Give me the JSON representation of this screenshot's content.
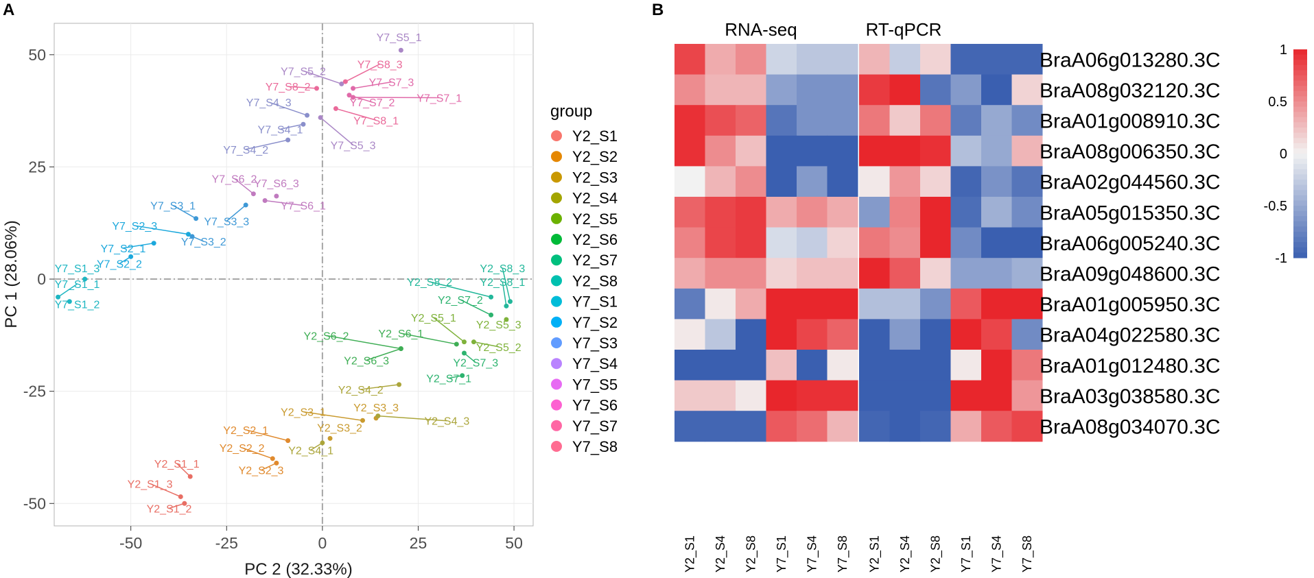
{
  "panels": {
    "a_label": "A",
    "b_label": "B"
  },
  "chart_data": [
    {
      "type": "scatter",
      "xlabel": "PC 2 (32.33%)",
      "ylabel": "PC 1 (28.06%)",
      "xlim": [
        -70,
        55
      ],
      "ylim": [
        -55,
        57
      ],
      "xticks": [
        -50,
        -25,
        0,
        25,
        50
      ],
      "yticks": [
        -50,
        -25,
        0,
        25,
        50
      ],
      "xtick_labels": [
        "-50",
        "-25",
        "0",
        "25",
        "50"
      ],
      "ytick_labels": [
        "-50",
        "-25",
        "0",
        "25",
        "50"
      ],
      "reference_lines": {
        "x": 0,
        "y": 0,
        "style": "dashed"
      },
      "legend": {
        "title": "group",
        "position": "right",
        "entries": [
          {
            "name": "Y2_S1",
            "color": "#F8766D"
          },
          {
            "name": "Y2_S2",
            "color": "#E58700"
          },
          {
            "name": "Y2_S3",
            "color": "#C99800"
          },
          {
            "name": "Y2_S4",
            "color": "#A3A500"
          },
          {
            "name": "Y2_S5",
            "color": "#6BB100"
          },
          {
            "name": "Y2_S6",
            "color": "#00BA38"
          },
          {
            "name": "Y2_S7",
            "color": "#00BF7D"
          },
          {
            "name": "Y2_S8",
            "color": "#00C0AF"
          },
          {
            "name": "Y7_S1",
            "color": "#00BCD8"
          },
          {
            "name": "Y7_S2",
            "color": "#00B0F6"
          },
          {
            "name": "Y7_S3",
            "color": "#619CFF"
          },
          {
            "name": "Y7_S4",
            "color": "#B983FF"
          },
          {
            "name": "Y7_S5",
            "color": "#E76BF3"
          },
          {
            "name": "Y7_S6",
            "color": "#FD61D1"
          },
          {
            "name": "Y7_S7",
            "color": "#FF67A4"
          },
          {
            "name": "Y7_S8",
            "color": "#FF6C91"
          }
        ]
      },
      "point_colors": {
        "Y2_S1": "#E86E64",
        "Y2_S2": "#E08A2E",
        "Y2_S3": "#C99A2E",
        "Y2_S4": "#ABA53A",
        "Y2_S5": "#7FB23B",
        "Y2_S6": "#3FAE55",
        "Y2_S7": "#2DB36F",
        "Y2_S8": "#22B79A",
        "Y7_S1": "#1EB6C2",
        "Y7_S2": "#1BA8DC",
        "Y7_S3": "#3E98D6",
        "Y7_S4": "#8A8FCB",
        "Y7_S5": "#AA87C6",
        "Y7_S6": "#C07ABF",
        "Y7_S7": "#E06AA9",
        "Y7_S8": "#EA6A9A"
      },
      "points": [
        {
          "label": "Y7_S5_1",
          "group": "Y7_S5",
          "x": 20.5,
          "y": 51,
          "lx": 20,
          "ly": 53
        },
        {
          "label": "Y7_S5_2",
          "group": "Y7_S5",
          "x": 5,
          "y": 43.5,
          "lx": -5,
          "ly": 45.5
        },
        {
          "label": "Y7_S8_3",
          "group": "Y7_S8",
          "x": 6,
          "y": 44,
          "lx": 15,
          "ly": 47
        },
        {
          "label": "Y7_S8_2",
          "group": "Y7_S8",
          "x": -1.5,
          "y": 42.5,
          "lx": -9,
          "ly": 42
        },
        {
          "label": "Y7_S7_3",
          "group": "Y7_S7",
          "x": 8,
          "y": 42.5,
          "lx": 18,
          "ly": 43
        },
        {
          "label": "Y7_S7_2",
          "group": "Y7_S7",
          "x": 7,
          "y": 41,
          "lx": 13,
          "ly": 38.5
        },
        {
          "label": "Y7_S7_1",
          "group": "Y7_S7",
          "x": 8,
          "y": 40.5,
          "lx": 30.5,
          "ly": 39.5
        },
        {
          "label": "Y7_S8_1",
          "group": "Y7_S8",
          "x": 3.5,
          "y": 38,
          "lx": 14,
          "ly": 34.5
        },
        {
          "label": "Y7_S4_3",
          "group": "Y7_S4",
          "x": -4,
          "y": 36.5,
          "lx": -14,
          "ly": 38.5
        },
        {
          "label": "Y7_S4_1",
          "group": "Y7_S4",
          "x": -5,
          "y": 34.5,
          "lx": -11,
          "ly": 32.5
        },
        {
          "label": "Y7_S4_2",
          "group": "Y7_S4",
          "x": -9,
          "y": 31,
          "lx": -20,
          "ly": 28
        },
        {
          "label": "Y7_S5_3",
          "group": "Y7_S5",
          "x": -0.5,
          "y": 36,
          "lx": 8,
          "ly": 29
        },
        {
          "label": "Y7_S6_2",
          "group": "Y7_S6",
          "x": -18,
          "y": 19,
          "lx": -23,
          "ly": 21.5
        },
        {
          "label": "Y7_S6_3",
          "group": "Y7_S6",
          "x": -12,
          "y": 18.5,
          "lx": -12,
          "ly": 20.5
        },
        {
          "label": "Y7_S6_1",
          "group": "Y7_S6",
          "x": -15,
          "y": 17.5,
          "lx": -5,
          "ly": 15.5
        },
        {
          "label": "Y7_S3_1",
          "group": "Y7_S3",
          "x": -33,
          "y": 13.5,
          "lx": -39,
          "ly": 15.5
        },
        {
          "label": "Y7_S3_3",
          "group": "Y7_S3",
          "x": -20,
          "y": 16.5,
          "lx": -25,
          "ly": 12
        },
        {
          "label": "Y7_S2_3",
          "group": "Y7_S2",
          "x": -35,
          "y": 10,
          "lx": -49,
          "ly": 11
        },
        {
          "label": "Y7_S3_2",
          "group": "Y7_S3",
          "x": -34,
          "y": 9.5,
          "lx": -31,
          "ly": 7.5
        },
        {
          "label": "Y7_S2_1",
          "group": "Y7_S2",
          "x": -44,
          "y": 8,
          "lx": -52,
          "ly": 6
        },
        {
          "label": "Y7_S2_2",
          "group": "Y7_S2",
          "x": -50,
          "y": 5,
          "lx": -53,
          "ly": 2.5
        },
        {
          "label": "Y7_S1_3",
          "group": "Y7_S1",
          "x": -62,
          "y": 0,
          "lx": -64,
          "ly": 1.5
        },
        {
          "label": "Y7_S1_1",
          "group": "Y7_S1",
          "x": -69,
          "y": -4,
          "lx": -64,
          "ly": -2
        },
        {
          "label": "Y7_S1_2",
          "group": "Y7_S1",
          "x": -66,
          "y": -5,
          "lx": -64,
          "ly": -6.5
        },
        {
          "label": "Y2_S8_3",
          "group": "Y2_S8",
          "x": 49,
          "y": -5,
          "lx": 47,
          "ly": 1.5
        },
        {
          "label": "Y2_S8_2",
          "group": "Y2_S8",
          "x": 44,
          "y": -4,
          "lx": 28,
          "ly": -1.5
        },
        {
          "label": "Y2_S8_1",
          "group": "Y2_S8",
          "x": 48,
          "y": -6,
          "lx": 47,
          "ly": -1.5
        },
        {
          "label": "Y2_S7_2",
          "group": "Y2_S7",
          "x": 44,
          "y": -8,
          "lx": 36,
          "ly": -5.5
        },
        {
          "label": "Y2_S5_1",
          "group": "Y2_S5",
          "x": 37,
          "y": -14,
          "lx": 29,
          "ly": -9.5
        },
        {
          "label": "Y2_S5_3",
          "group": "Y2_S5",
          "x": 48,
          "y": -9,
          "lx": 46,
          "ly": -11
        },
        {
          "label": "Y2_S6_2",
          "group": "Y2_S6",
          "x": 20.5,
          "y": -15.5,
          "lx": 1,
          "ly": -13.5
        },
        {
          "label": "Y2_S6_1",
          "group": "Y2_S6",
          "x": 35,
          "y": -14.5,
          "lx": 20.5,
          "ly": -13
        },
        {
          "label": "Y2_S5_2",
          "group": "Y2_S5",
          "x": 39.5,
          "y": -14,
          "lx": 46,
          "ly": -16
        },
        {
          "label": "Y2_S6_3",
          "group": "Y2_S6",
          "x": 20.5,
          "y": -15.5,
          "lx": 11.5,
          "ly": -19
        },
        {
          "label": "Y2_S7_3",
          "group": "Y2_S7",
          "x": 37,
          "y": -16.5,
          "lx": 40,
          "ly": -19.5
        },
        {
          "label": "Y2_S7_1",
          "group": "Y2_S7",
          "x": 36.5,
          "y": -21.5,
          "lx": 33,
          "ly": -23
        },
        {
          "label": "Y2_S4_2",
          "group": "Y2_S4",
          "x": 20,
          "y": -23.5,
          "lx": 10,
          "ly": -25.5
        },
        {
          "label": "Y2_S3_1",
          "group": "Y2_S3",
          "x": 10.5,
          "y": -31.5,
          "lx": -5,
          "ly": -30.5
        },
        {
          "label": "Y2_S3_3",
          "group": "Y2_S3",
          "x": 14,
          "y": -31,
          "lx": 14,
          "ly": -29.5
        },
        {
          "label": "Y2_S4_3",
          "group": "Y2_S4",
          "x": 14.5,
          "y": -30.5,
          "lx": 32.5,
          "ly": -32.5
        },
        {
          "label": "Y2_S2_1",
          "group": "Y2_S2",
          "x": -9,
          "y": -36,
          "lx": -20,
          "ly": -34.5
        },
        {
          "label": "Y2_S3_2",
          "group": "Y2_S3",
          "x": 2,
          "y": -35.5,
          "lx": 4.5,
          "ly": -34
        },
        {
          "label": "Y2_S4_1",
          "group": "Y2_S4",
          "x": 0,
          "y": -36.5,
          "lx": -3,
          "ly": -39
        },
        {
          "label": "Y2_S2_2",
          "group": "Y2_S2",
          "x": -13,
          "y": -40,
          "lx": -21,
          "ly": -38.5
        },
        {
          "label": "Y2_S2_3",
          "group": "Y2_S2",
          "x": -12,
          "y": -41,
          "lx": -16,
          "ly": -43.5
        },
        {
          "label": "Y2_S1_1",
          "group": "Y2_S1",
          "x": -34.5,
          "y": -44,
          "lx": -38,
          "ly": -42
        },
        {
          "label": "Y2_S1_3",
          "group": "Y2_S1",
          "x": -37,
          "y": -48.5,
          "lx": -45,
          "ly": -46.5
        },
        {
          "label": "Y2_S1_2",
          "group": "Y2_S1",
          "x": -36,
          "y": -50,
          "lx": -40,
          "ly": -52
        }
      ]
    },
    {
      "type": "heatmap",
      "block_titles": [
        "RNA-seq",
        "RT-qPCR"
      ],
      "columns": [
        "Y2_S1",
        "Y2_S4",
        "Y2_S8",
        "Y7_S1",
        "Y7_S4",
        "Y7_S8"
      ],
      "rows": [
        "BraA06g013280.3C",
        "BraA08g032120.3C",
        "BraA01g008910.3C",
        "BraA08g006350.3C",
        "BraA02g044560.3C",
        "BraA05g015350.3C",
        "BraA06g005240.3C",
        "BraA09g048600.3C",
        "BraA01g005950.3C",
        "BraA04g022580.3C",
        "BraA01g012480.3C",
        "BraA03g038580.3C",
        "BraA08g034070.3C"
      ],
      "colorbar": {
        "min": -1,
        "max": 1,
        "ticks": [
          1,
          0.5,
          0,
          -0.5,
          -1
        ],
        "tick_labels": [
          "1",
          "0.5",
          "0",
          "-0.5",
          "-1"
        ],
        "low_color": "#3A5FB0",
        "mid_color": "#F2F2F2",
        "high_color": "#E8262C"
      },
      "rna_seq": [
        [
          0.85,
          0.35,
          0.5,
          -0.2,
          -0.3,
          -0.3
        ],
        [
          0.5,
          0.3,
          0.3,
          -0.55,
          -0.65,
          -0.65
        ],
        [
          0.95,
          0.8,
          0.7,
          -0.85,
          -0.65,
          -0.65
        ],
        [
          0.95,
          0.5,
          0.25,
          -1,
          -1,
          -1
        ],
        [
          0,
          0.3,
          0.5,
          -1,
          -0.6,
          -1
        ],
        [
          0.7,
          0.85,
          0.9,
          0.35,
          0.5,
          0.35
        ],
        [
          0.55,
          0.85,
          0.9,
          -0.15,
          -0.25,
          0.15
        ],
        [
          0.35,
          0.5,
          0.5,
          0.15,
          0.25,
          0.25
        ],
        [
          -0.8,
          0.05,
          0.35,
          1,
          1,
          1
        ],
        [
          0.05,
          -0.3,
          -1,
          1,
          0.85,
          0.7
        ],
        [
          -1,
          -1,
          -1,
          0.25,
          -1,
          0.05
        ],
        [
          0.2,
          0.2,
          0.05,
          1,
          0.95,
          0.95
        ],
        [
          -0.95,
          -0.95,
          -0.95,
          0.75,
          0.65,
          0.3
        ]
      ],
      "rt_qpcr": [
        [
          0.3,
          -0.25,
          0.15,
          -0.95,
          -0.95,
          -0.95
        ],
        [
          0.9,
          1,
          -0.85,
          -0.6,
          -1,
          0.15
        ],
        [
          0.6,
          0.2,
          0.6,
          -0.8,
          -0.5,
          -0.7
        ],
        [
          1,
          1,
          0.95,
          -0.35,
          -0.5,
          0.3
        ],
        [
          0.05,
          0.45,
          0.15,
          -0.95,
          -0.65,
          -0.85
        ],
        [
          -0.6,
          0.55,
          1,
          -0.9,
          -0.45,
          -0.7
        ],
        [
          0.6,
          0.5,
          1,
          -0.7,
          -1,
          -1
        ],
        [
          1,
          0.75,
          0.15,
          -0.55,
          -0.55,
          -0.45
        ],
        [
          -0.35,
          -0.35,
          -0.65,
          0.75,
          1,
          1
        ],
        [
          -1,
          -0.6,
          -1,
          1,
          0.85,
          -0.7
        ],
        [
          -1,
          -1,
          -1,
          0.05,
          1,
          0.6
        ],
        [
          -1,
          -1,
          -1,
          1,
          1,
          0.45
        ],
        [
          -0.95,
          -1,
          -0.95,
          0.35,
          0.75,
          0.85
        ]
      ]
    }
  ]
}
